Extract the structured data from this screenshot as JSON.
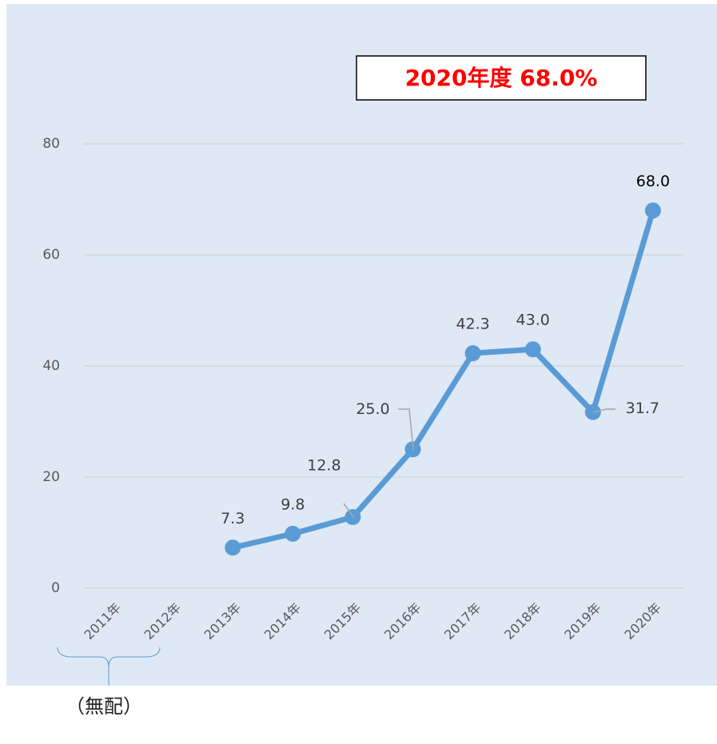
{
  "chart_data": {
    "type": "line",
    "annotation": "2020年度  68.0%",
    "categories": [
      "2011年",
      "2012年",
      "2013年",
      "2014年",
      "2015年",
      "2016年",
      "2017年",
      "2018年",
      "2019年",
      "2020年"
    ],
    "series": [
      {
        "name": null,
        "color": "#5b9bd5",
        "values": [
          null,
          null,
          7.3,
          9.8,
          12.8,
          25.0,
          42.3,
          43.0,
          31.7,
          68.0
        ],
        "value_labels": [
          null,
          null,
          "7.3",
          "9.8",
          "12.8",
          "25.0",
          "42.3",
          "43.0",
          "31.7",
          "68.0"
        ]
      }
    ],
    "ylim": [
      0,
      80
    ],
    "yticks": [
      0,
      20,
      40,
      60,
      80
    ],
    "grid": true,
    "note": "（無配）"
  }
}
